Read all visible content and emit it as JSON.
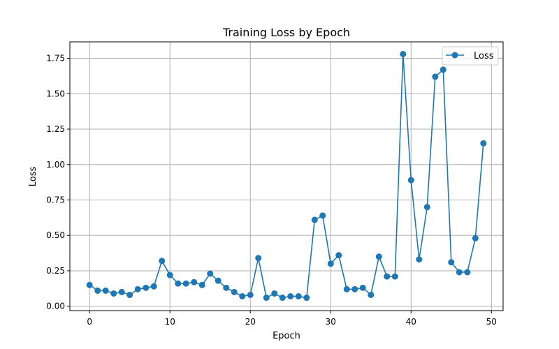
{
  "chart_data": {
    "type": "line",
    "title": "Training Loss by Epoch",
    "xlabel": "Epoch",
    "ylabel": "Loss",
    "xlim": [
      -2.45,
      51.45
    ],
    "ylim": [
      -0.031,
      1.866
    ],
    "xticks": [
      0,
      10,
      20,
      30,
      40,
      50
    ],
    "yticks": [
      0.0,
      0.25,
      0.5,
      0.75,
      1.0,
      1.25,
      1.5,
      1.75
    ],
    "xtick_labels": [
      "0",
      "10",
      "20",
      "30",
      "40",
      "50"
    ],
    "ytick_labels": [
      "0.00",
      "0.25",
      "0.50",
      "0.75",
      "1.00",
      "1.25",
      "1.50",
      "1.75"
    ],
    "grid": true,
    "legend": {
      "position": "top-right"
    },
    "series": [
      {
        "name": "Loss",
        "color": "#1f77b4",
        "marker": "circle",
        "x": [
          0,
          1,
          2,
          3,
          4,
          5,
          6,
          7,
          8,
          9,
          10,
          11,
          12,
          13,
          14,
          15,
          16,
          17,
          18,
          19,
          20,
          21,
          22,
          23,
          24,
          25,
          26,
          27,
          28,
          29,
          30,
          31,
          32,
          33,
          34,
          35,
          36,
          37,
          38,
          39,
          40,
          41,
          42,
          43,
          44,
          45,
          46,
          47,
          48,
          49
        ],
        "values": [
          0.15,
          0.11,
          0.11,
          0.09,
          0.1,
          0.08,
          0.12,
          0.13,
          0.14,
          0.32,
          0.22,
          0.16,
          0.16,
          0.17,
          0.15,
          0.23,
          0.18,
          0.13,
          0.1,
          0.07,
          0.08,
          0.34,
          0.06,
          0.09,
          0.06,
          0.07,
          0.07,
          0.06,
          0.61,
          0.64,
          0.3,
          0.36,
          0.12,
          0.12,
          0.13,
          0.08,
          0.35,
          0.21,
          0.21,
          1.78,
          0.89,
          0.33,
          0.7,
          1.62,
          1.67,
          0.31,
          0.24,
          0.24,
          0.48,
          1.15
        ]
      }
    ]
  }
}
